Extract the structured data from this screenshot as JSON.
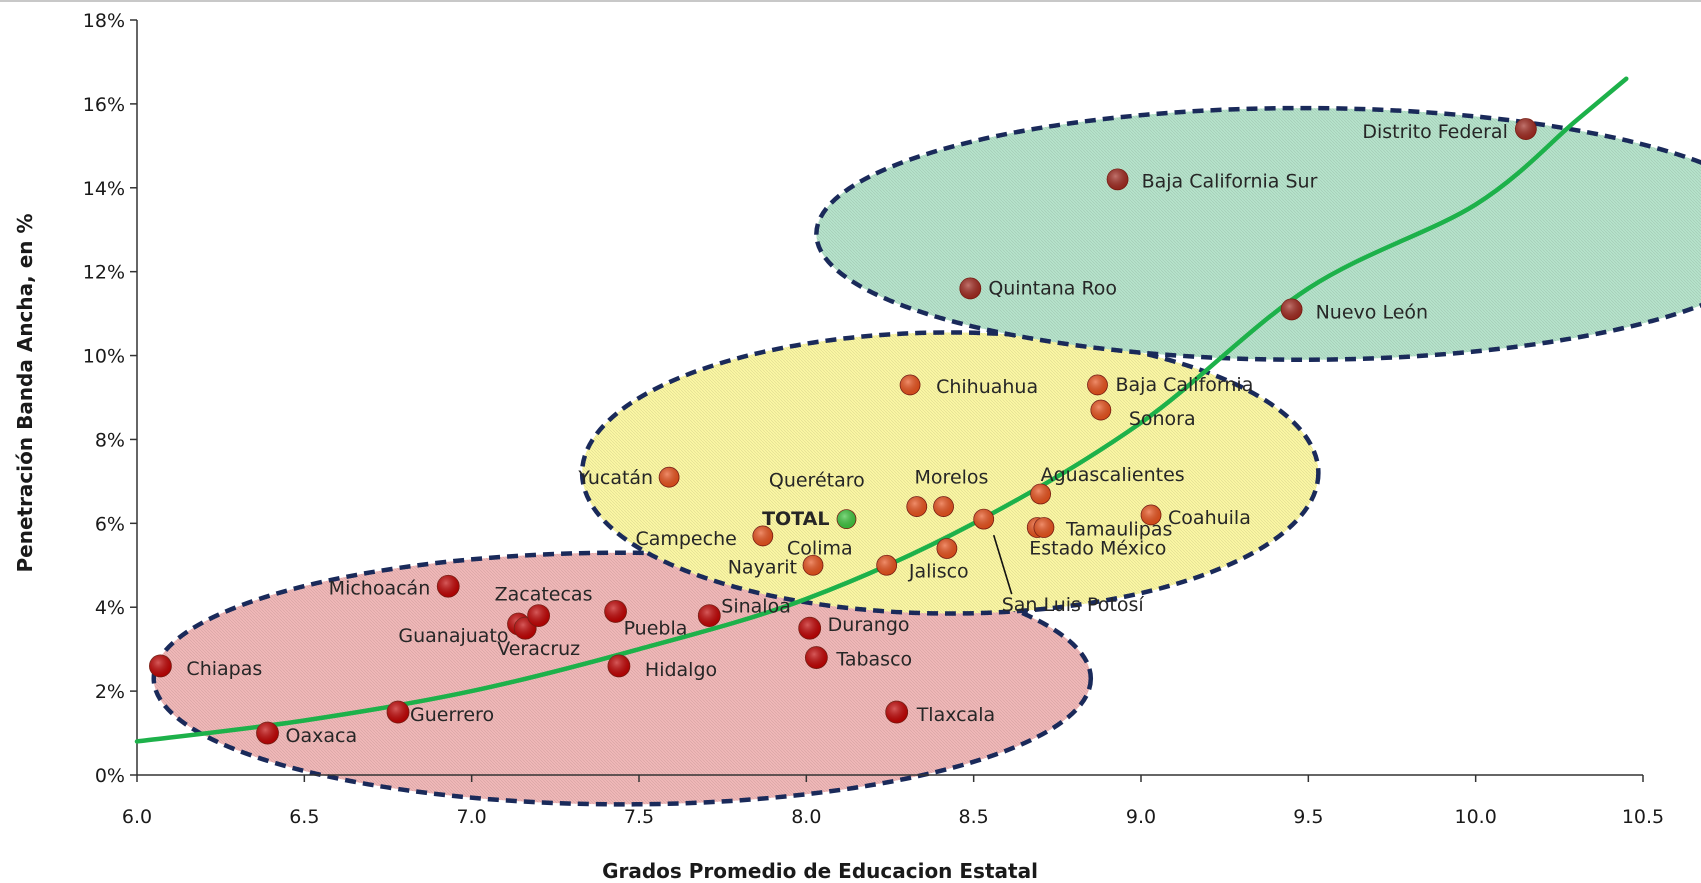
{
  "chart_data": {
    "type": "scatter",
    "xlabel": "Grados Promedio de Educacion Estatal",
    "ylabel": "Penetración Banda Ancha, en %",
    "xlim": [
      6.0,
      10.5
    ],
    "ylim": [
      0,
      18
    ],
    "x_ticks": [
      "6.0",
      "6.5",
      "7.0",
      "7.5",
      "8.0",
      "8.5",
      "9.0",
      "9.5",
      "10.0",
      "10.5"
    ],
    "y_ticks": [
      "0%",
      "2%",
      "4%",
      "6%",
      "8%",
      "10%",
      "12%",
      "14%",
      "16%",
      "18%"
    ],
    "grid": false,
    "legend": "none",
    "colors": {
      "low": "#c00000",
      "mid": "#e8501a",
      "high": "#a0281e",
      "total": "#3cc43c",
      "trend": "#1db14a",
      "ellipse_stroke": "#1a2a5a",
      "ellipse_low_fill": "#f0b8b8",
      "ellipse_mid_fill": "#fbf7a4",
      "ellipse_high_fill": "#b6e3cb"
    },
    "series": [
      {
        "label": "Chiapas",
        "x": 6.07,
        "y": 2.6,
        "group": "low"
      },
      {
        "label": "Oaxaca",
        "x": 6.39,
        "y": 1.0,
        "group": "low"
      },
      {
        "label": "Guerrero",
        "x": 6.78,
        "y": 1.5,
        "group": "low"
      },
      {
        "label": "Michoacán",
        "x": 6.93,
        "y": 4.5,
        "group": "low"
      },
      {
        "label": "Guanajuato",
        "x": 7.14,
        "y": 3.6,
        "group": "low"
      },
      {
        "label": "Veracruz",
        "x": 7.16,
        "y": 3.5,
        "group": "low"
      },
      {
        "label": "Zacatecas",
        "x": 7.2,
        "y": 3.8,
        "group": "low"
      },
      {
        "label": "Puebla",
        "x": 7.43,
        "y": 3.9,
        "group": "low"
      },
      {
        "label": "Hidalgo",
        "x": 7.44,
        "y": 2.6,
        "group": "low"
      },
      {
        "label": "Sinaloa",
        "x": 7.71,
        "y": 3.8,
        "group": "low"
      },
      {
        "label": "Durango",
        "x": 8.01,
        "y": 3.5,
        "group": "low"
      },
      {
        "label": "Tabasco",
        "x": 8.03,
        "y": 2.8,
        "group": "low"
      },
      {
        "label": "Tlaxcala",
        "x": 8.27,
        "y": 1.5,
        "group": "low"
      },
      {
        "label": "Yucatán",
        "x": 7.59,
        "y": 7.1,
        "group": "mid"
      },
      {
        "label": "Campeche",
        "x": 7.87,
        "y": 5.7,
        "group": "mid"
      },
      {
        "label": "Nayarit",
        "x": 8.02,
        "y": 5.0,
        "group": "mid"
      },
      {
        "label": "Querétaro",
        "x": 8.33,
        "y": 6.4,
        "group": "mid"
      },
      {
        "label": "Colima",
        "x": 8.24,
        "y": 5.0,
        "group": "mid"
      },
      {
        "label": "Morelos",
        "x": 8.41,
        "y": 6.4,
        "group": "mid"
      },
      {
        "label": "Jalisco",
        "x": 8.42,
        "y": 5.4,
        "group": "mid"
      },
      {
        "label": "San Luis Potosí",
        "x": 8.53,
        "y": 6.1,
        "group": "mid"
      },
      {
        "label": "Chihuahua",
        "x": 8.31,
        "y": 9.3,
        "group": "mid"
      },
      {
        "label": "Baja California",
        "x": 8.87,
        "y": 9.3,
        "group": "mid"
      },
      {
        "label": "Sonora",
        "x": 8.88,
        "y": 8.7,
        "group": "mid"
      },
      {
        "label": "Aguascalientes",
        "x": 8.7,
        "y": 6.7,
        "group": "mid"
      },
      {
        "label": "Estado México",
        "x": 8.69,
        "y": 5.9,
        "group": "mid"
      },
      {
        "label": "Tamaulipas",
        "x": 8.71,
        "y": 5.9,
        "group": "mid"
      },
      {
        "label": "Coahuila",
        "x": 9.03,
        "y": 6.2,
        "group": "mid"
      },
      {
        "label": "TOTAL",
        "x": 8.12,
        "y": 6.1,
        "group": "total"
      },
      {
        "label": "Quintana Roo",
        "x": 8.49,
        "y": 11.6,
        "group": "high"
      },
      {
        "label": "Baja California Sur",
        "x": 8.93,
        "y": 14.2,
        "group": "high"
      },
      {
        "label": "Nuevo León",
        "x": 9.45,
        "y": 11.1,
        "group": "high"
      },
      {
        "label": "Distrito Federal",
        "x": 10.15,
        "y": 15.4,
        "group": "high"
      }
    ],
    "trendline": {
      "type": "exponential",
      "points": [
        [
          6.0,
          0.8
        ],
        [
          6.5,
          1.3
        ],
        [
          7.0,
          2.0
        ],
        [
          7.5,
          3.0
        ],
        [
          8.0,
          4.2
        ],
        [
          8.5,
          6.0
        ],
        [
          9.0,
          8.4
        ],
        [
          9.5,
          11.6
        ],
        [
          10.0,
          13.6
        ],
        [
          10.3,
          15.6
        ],
        [
          10.45,
          16.6
        ]
      ]
    },
    "ellipses": [
      {
        "group": "low",
        "cx": 7.45,
        "cy": 2.3,
        "rx": 1.4,
        "ry": 3.0
      },
      {
        "group": "mid",
        "cx": 8.43,
        "cy": 7.2,
        "rx": 1.1,
        "ry": 3.35
      },
      {
        "group": "high",
        "cx": 9.48,
        "cy": 12.9,
        "rx": 1.45,
        "ry": 3.0
      }
    ]
  }
}
